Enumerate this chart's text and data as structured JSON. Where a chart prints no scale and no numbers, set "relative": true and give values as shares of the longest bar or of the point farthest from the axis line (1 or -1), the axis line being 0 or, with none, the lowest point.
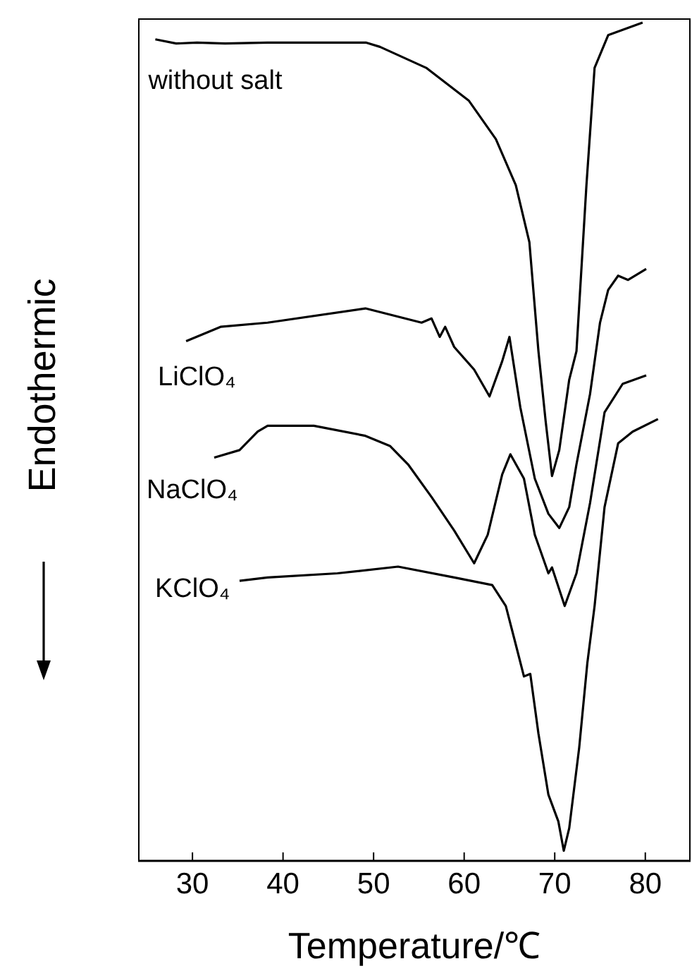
{
  "chart_data": {
    "type": "line",
    "relative": true,
    "xlabel": "Temperature/℃",
    "ylabel": "Endothermic",
    "xlim": [
      24,
      85
    ],
    "xticks": [
      30,
      40,
      50,
      60,
      70,
      80
    ],
    "grid": false,
    "legend": false,
    "marker": "none",
    "line_style": "solid",
    "series": [
      {
        "name": "without salt",
        "color": "#000000",
        "x": [
          25.9,
          28.2,
          30.5,
          33.6,
          38.3,
          44.5,
          49.2,
          50.7,
          55.8,
          60.5,
          63.5,
          65.7,
          67.2,
          68.2,
          69.0,
          69.7,
          70.5,
          71.6,
          72.4,
          73.5,
          74.4,
          75.9,
          79.7
        ],
        "values": [
          0.98,
          0.975,
          0.976,
          0.975,
          0.976,
          0.976,
          0.976,
          0.971,
          0.946,
          0.907,
          0.861,
          0.806,
          0.738,
          0.608,
          0.524,
          0.459,
          0.49,
          0.574,
          0.608,
          0.806,
          0.946,
          0.985,
          1
        ]
      },
      {
        "name": "LiClO₄",
        "color": "#000000",
        "x": [
          29.3,
          33.1,
          38.3,
          49.1,
          55.3,
          56.4,
          57.3,
          57.9,
          58.9,
          61.1,
          62.8,
          64.2,
          65.0,
          66.2,
          67.8,
          69.3,
          70.5,
          71.6,
          72.4,
          73.9,
          75.0,
          75.9,
          77.0,
          78.1,
          80.1
        ],
        "values": [
          0.62,
          0.637,
          0.642,
          0.659,
          0.642,
          0.647,
          0.625,
          0.637,
          0.613,
          0.586,
          0.554,
          0.596,
          0.625,
          0.541,
          0.456,
          0.414,
          0.397,
          0.422,
          0.473,
          0.557,
          0.642,
          0.681,
          0.698,
          0.693,
          0.706
        ]
      },
      {
        "name": "NaClO₄",
        "color": "#000000",
        "x": [
          32.4,
          35.2,
          37.2,
          38.3,
          43.4,
          49.1,
          51.8,
          53.8,
          56.4,
          58.9,
          61.1,
          62.6,
          64.2,
          65.1,
          66.6,
          67.8,
          69.3,
          69.7,
          71.1,
          72.4,
          73.9,
          75.5,
          77.5,
          80.1
        ],
        "values": [
          0.481,
          0.49,
          0.512,
          0.519,
          0.519,
          0.507,
          0.495,
          0.473,
          0.434,
          0.394,
          0.355,
          0.389,
          0.461,
          0.485,
          0.456,
          0.389,
          0.343,
          0.35,
          0.304,
          0.343,
          0.427,
          0.535,
          0.569,
          0.579
        ]
      },
      {
        "name": "KClO₄",
        "color": "#000000",
        "x": [
          35.2,
          38.3,
          46.0,
          52.7,
          58.9,
          63.1,
          64.6,
          65.7,
          66.6,
          67.3,
          68.2,
          69.3,
          70.4,
          71.0,
          71.6,
          72.7,
          73.6,
          74.4,
          75.5,
          77.0,
          78.6,
          81.4
        ],
        "values": [
          0.334,
          0.338,
          0.343,
          0.351,
          0.338,
          0.329,
          0.304,
          0.258,
          0.22,
          0.223,
          0.152,
          0.079,
          0.047,
          0.012,
          0.039,
          0.135,
          0.236,
          0.304,
          0.422,
          0.498,
          0.512,
          0.527
        ]
      }
    ]
  }
}
